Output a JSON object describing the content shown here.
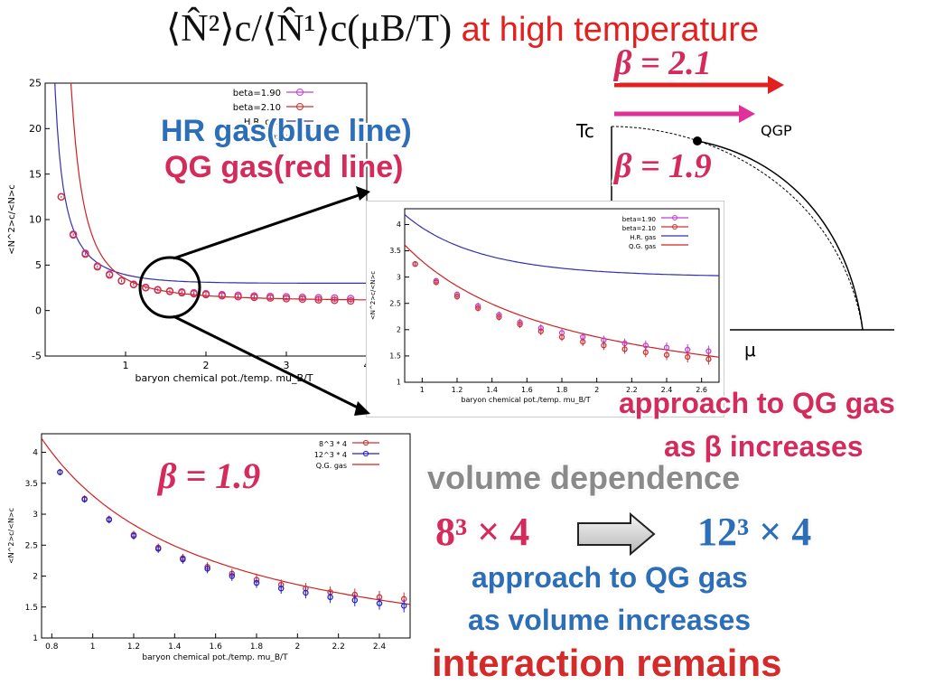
{
  "title": {
    "formula": "⟨N̂²⟩c/⟨N̂¹⟩c(μB/T)",
    "suffix": "at high temperature"
  },
  "labels": {
    "hr_gas": "HR gas(blue line)",
    "qg_gas": "QG gas(red line)",
    "beta_21": "β = 2.1",
    "beta_19_phase": "β = 1.9",
    "beta_19_bottom": "β = 1.9",
    "approach_beta_1": "approach to QG gas",
    "approach_beta_2": "as β increases",
    "volume_dependence": "volume dependence",
    "vol_small": "8³ × 4",
    "vol_large": "12³ × 4",
    "approach_vol_1": "approach to QG gas",
    "approach_vol_2": "as volume increases",
    "interaction": "interaction remains"
  },
  "phase_diagram": {
    "tc_label": "Tc",
    "qgp_label": "QGP",
    "mu_label": "μ"
  },
  "colors": {
    "title_red": "#e4201f",
    "arrow_red": "#e32020",
    "arrow_magenta": "#e0309a",
    "beta190": "#c040d0",
    "beta210": "#d03030",
    "hr_line": "#3030b0",
    "qg_line": "#d02020",
    "blue_series": "#2020d0"
  },
  "chart_data": [
    {
      "id": "main",
      "type": "scatter",
      "xlabel": "baryon chemical pot./temp. mu_B/T",
      "ylabel": "<N^2>c/<N>c",
      "xlim": [
        0,
        4
      ],
      "ylim": [
        -5,
        25
      ],
      "xticks": [
        1,
        2,
        3,
        4
      ],
      "yticks": [
        -5,
        0,
        5,
        10,
        15,
        20,
        25
      ],
      "legend": [
        "beta=1.90",
        "beta=2.10",
        "H.R. gas",
        "Q.G. gas"
      ],
      "x": [
        0.2,
        0.35,
        0.5,
        0.65,
        0.8,
        0.95,
        1.1,
        1.25,
        1.4,
        1.55,
        1.7,
        1.85,
        2.0,
        2.2,
        2.4,
        2.6,
        2.8,
        3.0,
        3.2,
        3.4,
        3.6,
        3.8
      ],
      "series": [
        {
          "name": "beta=1.90",
          "values": [
            12.5,
            8.4,
            6.3,
            4.9,
            4.0,
            3.3,
            2.9,
            2.55,
            2.3,
            2.15,
            2.05,
            1.95,
            1.85,
            1.75,
            1.68,
            1.6,
            1.55,
            1.5,
            1.45,
            1.4,
            1.38,
            1.32
          ]
        },
        {
          "name": "beta=2.10",
          "values": [
            12.5,
            8.3,
            6.2,
            4.8,
            3.9,
            3.25,
            2.85,
            2.5,
            2.25,
            2.1,
            1.95,
            1.85,
            1.75,
            1.62,
            1.52,
            1.45,
            1.38,
            1.3,
            1.25,
            1.18,
            1.12,
            1.05
          ]
        }
      ],
      "lines": [
        "H.R. gas",
        "Q.G. gas"
      ]
    },
    {
      "id": "inset",
      "type": "scatter",
      "xlabel": "baryon chemical pot./temp. mu_B/T",
      "ylabel": "<N^2>c/<N>c",
      "xlim": [
        0.9,
        2.7
      ],
      "ylim": [
        1,
        4.3
      ],
      "xticks": [
        1,
        1.2,
        1.4,
        1.6,
        1.8,
        2,
        2.2,
        2.4,
        2.6
      ],
      "yticks": [
        1,
        1.5,
        2,
        2.5,
        3,
        3.5,
        4
      ],
      "legend": [
        "beta=1.90",
        "beta=2.10",
        "H.R. gas",
        "Q.G. gas"
      ],
      "x": [
        0.96,
        1.08,
        1.2,
        1.32,
        1.44,
        1.56,
        1.68,
        1.8,
        1.92,
        2.04,
        2.16,
        2.28,
        2.4,
        2.52,
        2.64
      ],
      "series": [
        {
          "name": "beta=1.90",
          "values": [
            3.25,
            2.93,
            2.67,
            2.45,
            2.28,
            2.14,
            2.03,
            1.94,
            1.86,
            1.8,
            1.74,
            1.7,
            1.66,
            1.62,
            1.59
          ]
        },
        {
          "name": "beta=2.10",
          "values": [
            3.25,
            2.9,
            2.63,
            2.41,
            2.24,
            2.1,
            1.97,
            1.86,
            1.77,
            1.7,
            1.63,
            1.57,
            1.52,
            1.48,
            1.44
          ]
        }
      ],
      "lines": [
        "H.R. gas",
        "Q.G. gas"
      ]
    },
    {
      "id": "volume",
      "type": "scatter",
      "xlabel": "baryon chemical pot./temp. mu_B/T",
      "ylabel": "<N^2>c/<N>c",
      "xlim": [
        0.75,
        2.55
      ],
      "ylim": [
        1,
        4.3
      ],
      "xticks": [
        0.8,
        1,
        1.2,
        1.4,
        1.6,
        1.8,
        2,
        2.2,
        2.4
      ],
      "yticks": [
        1,
        1.5,
        2,
        2.5,
        3,
        3.5,
        4
      ],
      "legend": [
        "8^3 * 4",
        "12^3 * 4",
        "Q.G. gas"
      ],
      "x": [
        0.84,
        0.96,
        1.08,
        1.2,
        1.32,
        1.44,
        1.56,
        1.68,
        1.8,
        1.92,
        2.04,
        2.16,
        2.28,
        2.4,
        2.52
      ],
      "series": [
        {
          "name": "8^3 * 4",
          "values": [
            3.68,
            3.25,
            2.92,
            2.67,
            2.46,
            2.29,
            2.15,
            2.04,
            1.94,
            1.86,
            1.8,
            1.74,
            1.7,
            1.66,
            1.63
          ]
        },
        {
          "name": "12^3 * 4",
          "values": [
            3.68,
            3.24,
            2.91,
            2.65,
            2.44,
            2.27,
            2.12,
            2.0,
            1.89,
            1.8,
            1.73,
            1.66,
            1.61,
            1.56,
            1.52
          ]
        }
      ],
      "lines": [
        "Q.G. gas"
      ]
    }
  ]
}
